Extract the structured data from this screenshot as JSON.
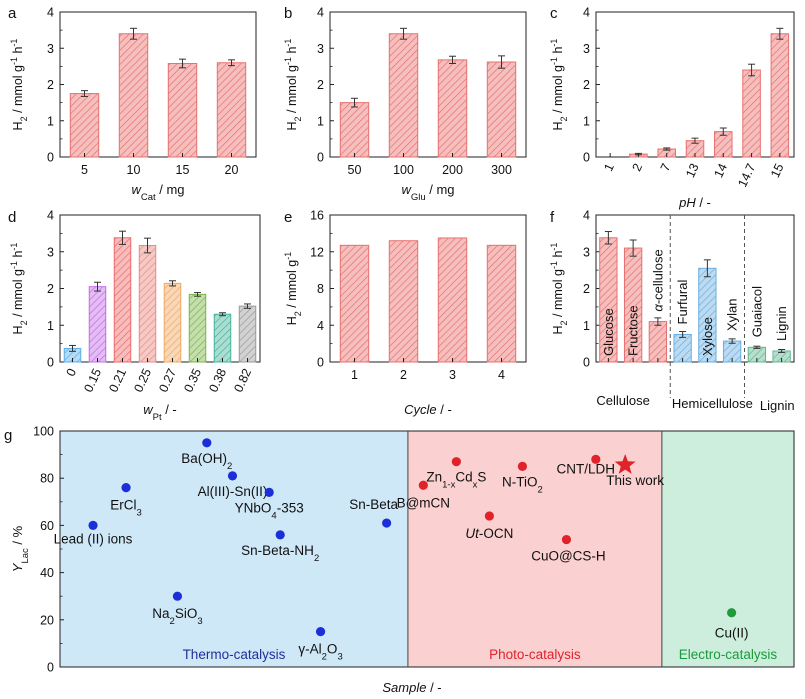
{
  "colors": {
    "red": "#e8706f",
    "red_fill": "#f6b7b5",
    "blue": "#6aaee0",
    "blue_fill": "#b9dcf4",
    "green": "#62b891",
    "green_fill": "#a8dcc5",
    "thermo_bg": "#cfe8f8",
    "photo_bg": "#fbd0d0",
    "electro_bg": "#cdeedd",
    "dot_blue": "#1a2fd8",
    "dot_red": "#e0222a",
    "dot_green": "#1f9b3a",
    "star": "#e0222a"
  },
  "chart_data": [
    {
      "panel": "a",
      "type": "bar",
      "categories": [
        "5",
        "10",
        "15",
        "20"
      ],
      "values": [
        1.75,
        3.4,
        2.58,
        2.6
      ],
      "errors": [
        0.08,
        0.15,
        0.12,
        0.08
      ],
      "xlabel_pre": "w",
      "xlabel_sub": "Cat",
      "xlabel_post": " / mg",
      "ylabel": "H2 / mmol g-1 h-1",
      "yticks": [
        "0",
        "1",
        "2",
        "3",
        "4"
      ],
      "ylim": [
        0,
        4
      ]
    },
    {
      "panel": "b",
      "type": "bar",
      "categories": [
        "50",
        "100",
        "200",
        "300"
      ],
      "values": [
        1.5,
        3.4,
        2.68,
        2.62
      ],
      "errors": [
        0.12,
        0.15,
        0.1,
        0.17
      ],
      "xlabel_pre": "w",
      "xlabel_sub": "Glu",
      "xlabel_post": " / mg",
      "ylabel": "H2 / mmol g-1 h-1",
      "yticks": [
        "0",
        "1",
        "2",
        "3",
        "4"
      ],
      "ylim": [
        0,
        4
      ]
    },
    {
      "panel": "c",
      "type": "bar",
      "categories": [
        "1",
        "2",
        "7",
        "13",
        "14",
        "14.7",
        "15"
      ],
      "values": [
        0.0,
        0.08,
        0.22,
        0.45,
        0.7,
        2.4,
        3.4
      ],
      "errors": [
        0.0,
        0.02,
        0.03,
        0.07,
        0.1,
        0.16,
        0.15
      ],
      "xlabel_pre": "pH",
      "xlabel_sub": "",
      "xlabel_post": " / -",
      "ylabel": "H2 / mmol g-1 h-1",
      "yticks": [
        "0",
        "1",
        "2",
        "3",
        "4"
      ],
      "ylim": [
        0,
        4
      ]
    },
    {
      "panel": "d",
      "type": "bar",
      "categories": [
        "0",
        "0.15",
        "0.21",
        "0.25",
        "0.27",
        "0.35",
        "0.38",
        "0.82"
      ],
      "values": [
        0.37,
        2.05,
        3.38,
        3.17,
        2.14,
        1.84,
        1.3,
        1.52
      ],
      "errors": [
        0.08,
        0.12,
        0.18,
        0.2,
        0.07,
        0.05,
        0.04,
        0.06
      ],
      "bar_colors": [
        "#5aaee8",
        "#c46ce6",
        "#ee6a6a",
        "#e98a80",
        "#f0a862",
        "#7bb54a",
        "#44b39b",
        "#9a9a9a"
      ],
      "xlabel_pre": "w",
      "xlabel_sub": "Pt",
      "xlabel_post": " / -",
      "ylabel": "H2 / mmol g-1 h-1",
      "yticks": [
        "0",
        "1",
        "2",
        "3",
        "4"
      ],
      "ylim": [
        0,
        4
      ]
    },
    {
      "panel": "e",
      "type": "bar",
      "categories": [
        "1",
        "2",
        "3",
        "4"
      ],
      "values": [
        12.7,
        13.2,
        13.5,
        12.7
      ],
      "errors": [
        0,
        0,
        0,
        0
      ],
      "xlabel_pre": "Cycle",
      "xlabel_sub": "",
      "xlabel_post": " / -",
      "ylabel": "H2 / mmol g-1",
      "yticks": [
        "0",
        "4",
        "8",
        "12",
        "16"
      ],
      "ylim": [
        0,
        16
      ]
    },
    {
      "panel": "f",
      "type": "bar",
      "categories": [
        "Glucose",
        "Fructose",
        "α-cellulose",
        "Furfural",
        "Xylose",
        "Xylan",
        "Guaiacol",
        "Lignin"
      ],
      "values": [
        3.38,
        3.1,
        1.1,
        0.75,
        2.55,
        0.57,
        0.4,
        0.3
      ],
      "errors": [
        0.17,
        0.22,
        0.1,
        0.08,
        0.23,
        0.06,
        0.03,
        0.04
      ],
      "groups": [
        {
          "name": "Cellulose",
          "count": 3,
          "color": "red"
        },
        {
          "name": "Hemicellulose",
          "count": 3,
          "color": "blue"
        },
        {
          "name": "Lignin",
          "count": 2,
          "color": "green"
        }
      ],
      "ylabel": "H2 / mmol g-1 h-1",
      "yticks": [
        "0",
        "1",
        "2",
        "3",
        "4"
      ],
      "ylim": [
        0,
        4
      ]
    },
    {
      "panel": "g",
      "type": "scatter",
      "ylabel": "YLac / %",
      "xlabel": "Sample / -",
      "yticks": [
        "0",
        "20",
        "40",
        "60",
        "80",
        "100"
      ],
      "ylim": [
        0,
        100
      ],
      "regions": [
        {
          "name": "Thermo-catalysis",
          "x_range": [
            0,
            0.474
          ]
        },
        {
          "name": "Photo-catalysis",
          "x_range": [
            0.474,
            0.82
          ]
        },
        {
          "name": "Electro-catalysis",
          "x_range": [
            0.82,
            1
          ]
        }
      ],
      "points": [
        {
          "label": "Lead (II) ions",
          "x": 0.045,
          "y": 60,
          "region": "thermo"
        },
        {
          "label": "ErCl3",
          "x": 0.09,
          "y": 76,
          "region": "thermo"
        },
        {
          "label": "Na2SiO3",
          "x": 0.16,
          "y": 30,
          "region": "thermo"
        },
        {
          "label": "Ba(OH)2",
          "x": 0.2,
          "y": 95,
          "region": "thermo"
        },
        {
          "label": "Al(III)-Sn(II)",
          "x": 0.235,
          "y": 81,
          "region": "thermo"
        },
        {
          "label": "YNbO4-353",
          "x": 0.285,
          "y": 74,
          "region": "thermo"
        },
        {
          "label": "Sn-Beta-NH2",
          "x": 0.3,
          "y": 56,
          "region": "thermo"
        },
        {
          "label": "γ-Al2O3",
          "x": 0.355,
          "y": 15,
          "region": "thermo"
        },
        {
          "label": "Sn-Beta",
          "x": 0.445,
          "y": 61,
          "region": "thermo"
        },
        {
          "label": "B@mCN",
          "x": 0.495,
          "y": 77,
          "region": "photo"
        },
        {
          "label": "Zn1-xCdxS",
          "x": 0.54,
          "y": 87,
          "region": "photo"
        },
        {
          "label": "Ut-OCN",
          "x": 0.585,
          "y": 64,
          "region": "photo"
        },
        {
          "label": "N-TiO2",
          "x": 0.63,
          "y": 85,
          "region": "photo"
        },
        {
          "label": "CuO@CS-H",
          "x": 0.69,
          "y": 54,
          "region": "photo"
        },
        {
          "label": "CNT/LDH",
          "x": 0.73,
          "y": 88,
          "region": "photo"
        },
        {
          "label": "This work",
          "x": 0.77,
          "y": 85.6,
          "region": "star"
        },
        {
          "label": "Cu(II)",
          "x": 0.915,
          "y": 23,
          "region": "electro"
        }
      ]
    }
  ]
}
